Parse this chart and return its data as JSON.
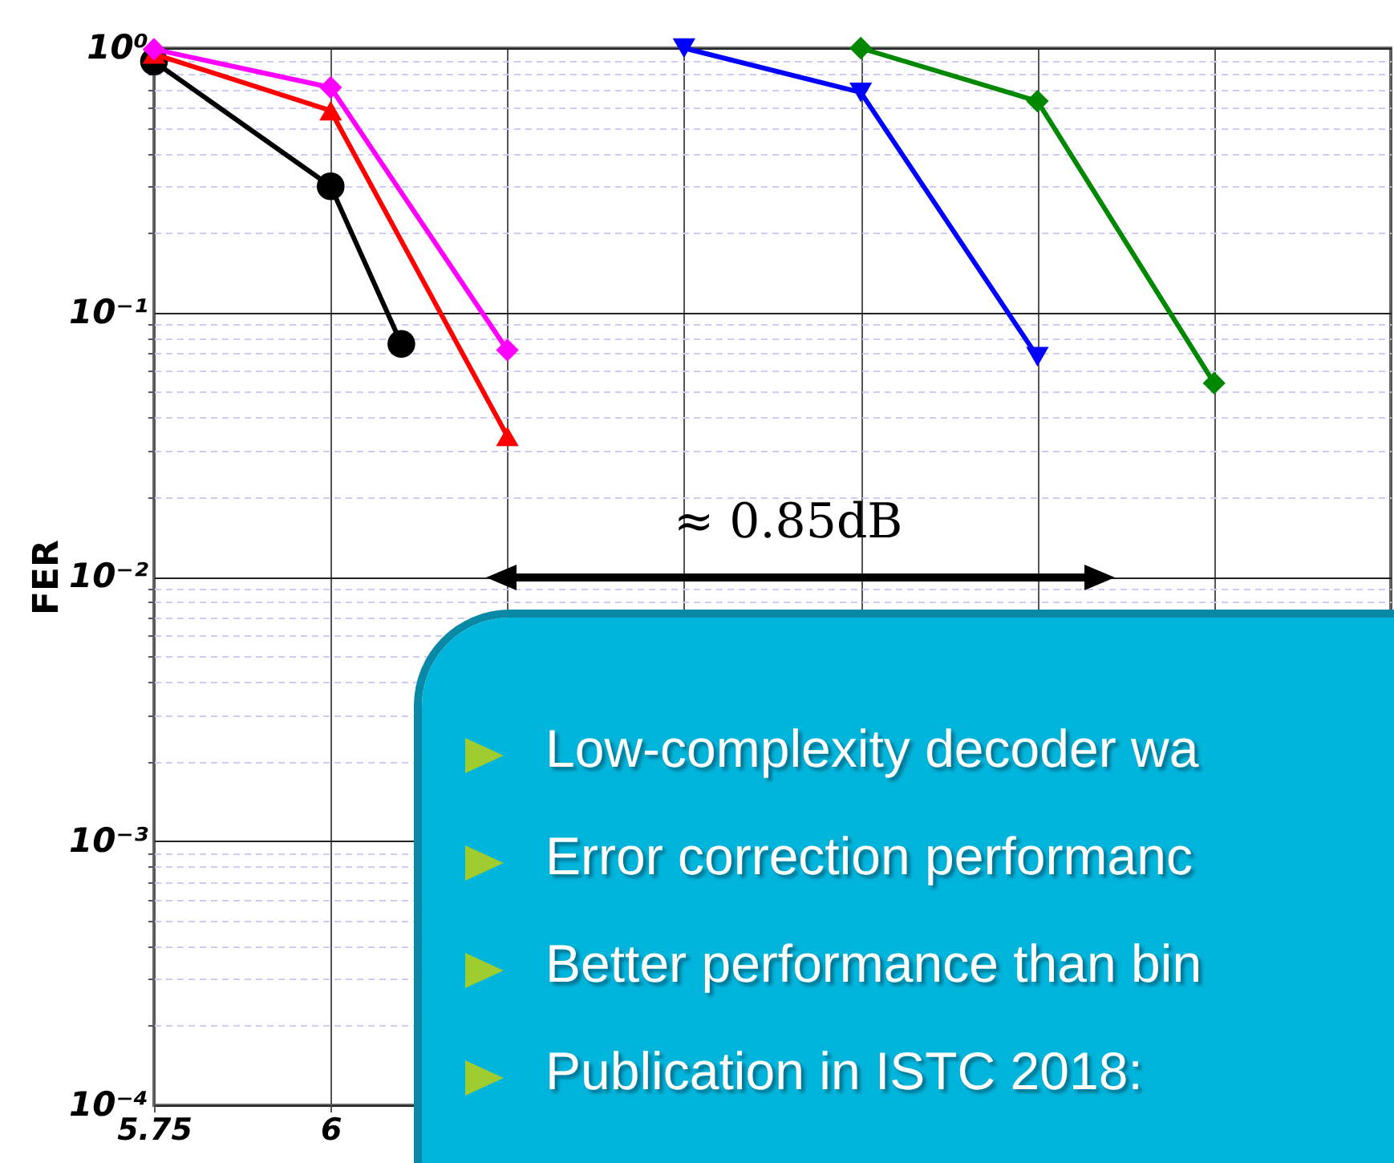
{
  "chart_data": {
    "type": "line",
    "ylabel": "FER",
    "log": "y",
    "grid": true,
    "xlim": [
      5.75,
      7.5
    ],
    "xticks": [
      {
        "value": 5.75,
        "label": "5.75"
      },
      {
        "value": 6,
        "label": "6"
      },
      {
        "value": 6.25,
        "label": null
      },
      {
        "value": 6.5,
        "label": null
      },
      {
        "value": 6.75,
        "label": null
      },
      {
        "value": 7,
        "label": null
      },
      {
        "value": 7.25,
        "label": null
      },
      {
        "value": 7.5,
        "label": null
      }
    ],
    "ylim": [
      0.0001,
      1
    ],
    "yticks": [
      {
        "value": 1,
        "label": "10⁰"
      },
      {
        "value": 0.1,
        "label": "10⁻¹"
      },
      {
        "value": 0.01,
        "label": "10⁻²"
      },
      {
        "value": 0.001,
        "label": "10⁻³"
      },
      {
        "value": 0.0001,
        "label": "10⁻⁴"
      },
      {
        "value": 0.9,
        "label": null
      },
      {
        "value": 0.8,
        "label": null
      },
      {
        "value": 0.7,
        "label": null
      },
      {
        "value": 0.6,
        "label": null
      },
      {
        "value": 0.5,
        "label": null
      },
      {
        "value": 0.4,
        "label": null
      },
      {
        "value": 0.3,
        "label": null
      },
      {
        "value": 0.2,
        "label": null
      },
      {
        "value": 0.09,
        "label": null
      },
      {
        "value": 0.08,
        "label": null
      },
      {
        "value": 0.07,
        "label": null
      },
      {
        "value": 0.06,
        "label": null
      },
      {
        "value": 0.05,
        "label": null
      },
      {
        "value": 0.04,
        "label": null
      },
      {
        "value": 0.03,
        "label": null
      },
      {
        "value": 0.02,
        "label": null
      },
      {
        "value": 0.009,
        "label": null
      },
      {
        "value": 0.008,
        "label": null
      },
      {
        "value": 0.007,
        "label": null
      },
      {
        "value": 0.006,
        "label": null
      },
      {
        "value": 0.005,
        "label": null
      },
      {
        "value": 0.004,
        "label": null
      },
      {
        "value": 0.003,
        "label": null
      },
      {
        "value": 0.002,
        "label": null
      },
      {
        "value": 0.0009,
        "label": null
      },
      {
        "value": 0.0008,
        "label": null
      },
      {
        "value": 0.0007,
        "label": null
      },
      {
        "value": 0.0006,
        "label": null
      },
      {
        "value": 0.0005,
        "label": null
      },
      {
        "value": 0.0004,
        "label": null
      },
      {
        "value": 0.0003,
        "label": null
      },
      {
        "value": 0.0002,
        "label": null
      }
    ],
    "series": [
      {
        "color": "#000000",
        "marker": "circle",
        "x": [
          5.75,
          6,
          6.1
        ],
        "values": [
          0.89,
          0.3,
          0.076
        ]
      },
      {
        "color": "#ff0000",
        "marker": "triangle",
        "x": [
          5.75,
          6,
          6.25
        ],
        "values": [
          0.95,
          0.58,
          0.034
        ]
      },
      {
        "color": "#ff00ff",
        "marker": "diamond",
        "x": [
          5.75,
          6,
          6.25
        ],
        "values": [
          0.99,
          0.71,
          0.072
        ]
      },
      {
        "color": "#0000ff",
        "marker": "triangle-down",
        "x": [
          6.5,
          6.75,
          7
        ],
        "values": [
          1,
          0.68,
          0.068
        ]
      },
      {
        "color": "#008800",
        "marker": "diamond",
        "x": [
          6.75,
          7,
          7.25
        ],
        "values": [
          1,
          0.63,
          0.054
        ]
      }
    ],
    "annotations": [
      "≈ 0.85dB",
      "Low-complexity decoder wa",
      "Error correction performanc",
      "Better performance than bin",
      "Publication in ISTC 2018:"
    ]
  }
}
